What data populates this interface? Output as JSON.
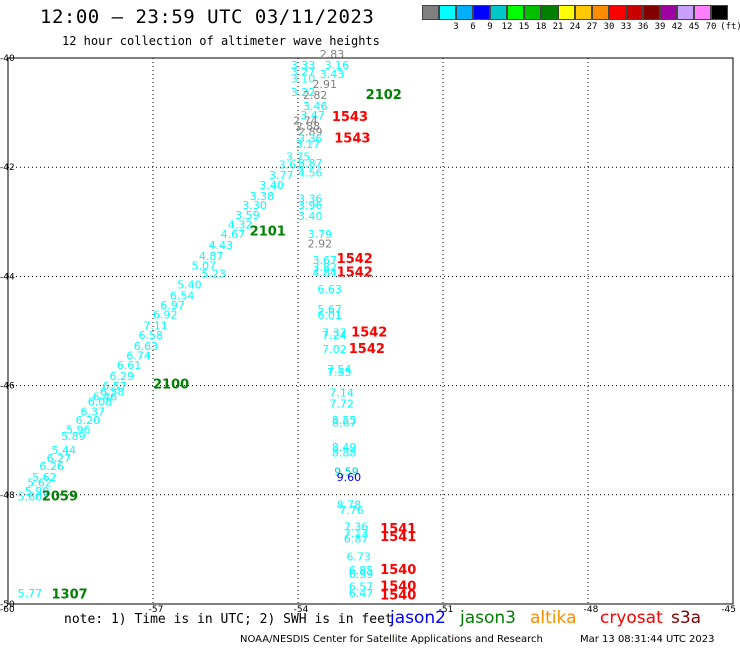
{
  "title": "12:00 — 23:59 UTC 03/11/2023",
  "subtitle": "12 hour collection of altimeter wave heights",
  "legend": {
    "unit": "(ft)",
    "colors": [
      "#808080",
      "#00ffff",
      "#00b0ff",
      "#0000ff",
      "#00c8c8",
      "#00ff00",
      "#00c000",
      "#008000",
      "#ffff00",
      "#ffc800",
      "#ff8c00",
      "#ff0000",
      "#c80000",
      "#800000",
      "#a000a0",
      "#c8a0ff",
      "#ff80ff",
      "#000000"
    ],
    "labels": [
      "3",
      "6",
      "9",
      "12",
      "15",
      "18",
      "21",
      "24",
      "27",
      "30",
      "33",
      "36",
      "39",
      "42",
      "45",
      "70"
    ]
  },
  "map": {
    "lon_ticks": [
      "-57",
      "-54",
      "-51",
      "-48",
      "-45"
    ],
    "lat_ticks": [
      "-40",
      "-42",
      "-44",
      "-46",
      "-48",
      "-50"
    ],
    "corner_label": "-60"
  },
  "points": [
    {
      "t": "2.83",
      "c": "#808080",
      "lon": -53.55,
      "lat": -40.0
    },
    {
      "t": "3.16",
      "c": "#00ffff",
      "lon": -53.45,
      "lat": -40.2
    },
    {
      "t": "3.43",
      "c": "#00ffff",
      "lon": -53.55,
      "lat": -40.37
    },
    {
      "t": "3.33",
      "c": "#00ffff",
      "lon": -54.15,
      "lat": -40.2
    },
    {
      "t": "3.27",
      "c": "#00ffff",
      "lon": -54.15,
      "lat": -40.32
    },
    {
      "t": "3.10",
      "c": "#00ffff",
      "lon": -54.15,
      "lat": -40.45
    },
    {
      "t": "2.91",
      "c": "#808080",
      "lon": -53.7,
      "lat": -40.55
    },
    {
      "t": "3.22",
      "c": "#00ffff",
      "lon": -54.15,
      "lat": -40.7
    },
    {
      "t": "2.82",
      "c": "#808080",
      "lon": -53.9,
      "lat": -40.75
    },
    {
      "t": "3.46",
      "c": "#00ffff",
      "lon": -53.9,
      "lat": -40.95
    },
    {
      "t": "3.47",
      "c": "#00ffff",
      "lon": -53.95,
      "lat": -41.12
    },
    {
      "t": "2.74",
      "c": "#808080",
      "lon": -54.1,
      "lat": -41.22
    },
    {
      "t": "2.88",
      "c": "#808080",
      "lon": -54.05,
      "lat": -41.32
    },
    {
      "t": "2.89",
      "c": "#808080",
      "lon": -54.0,
      "lat": -41.42
    },
    {
      "t": "3.36",
      "c": "#00ffff",
      "lon": -54.0,
      "lat": -41.55
    },
    {
      "t": "3.17",
      "c": "#00ffff",
      "lon": -54.05,
      "lat": -41.65
    },
    {
      "t": "3.75",
      "c": "#00ffff",
      "lon": -54.25,
      "lat": -41.88
    },
    {
      "t": "3.61",
      "c": "#00ffff",
      "lon": -54.4,
      "lat": -42.02
    },
    {
      "t": "3.87",
      "c": "#00ffff",
      "lon": -54.0,
      "lat": -42.0
    },
    {
      "t": "4.56",
      "c": "#00ffff",
      "lon": -54.0,
      "lat": -42.17
    },
    {
      "t": "3.77",
      "c": "#00ffff",
      "lon": -54.6,
      "lat": -42.22
    },
    {
      "t": "3.40",
      "c": "#00ffff",
      "lon": -54.8,
      "lat": -42.4
    },
    {
      "t": "3.38",
      "c": "#00ffff",
      "lon": -55.0,
      "lat": -42.6
    },
    {
      "t": "3.36",
      "c": "#00ffff",
      "lon": -54.0,
      "lat": -42.65
    },
    {
      "t": "3.30",
      "c": "#00ffff",
      "lon": -55.15,
      "lat": -42.77
    },
    {
      "t": "3.96",
      "c": "#00ffff",
      "lon": -54.0,
      "lat": -42.77
    },
    {
      "t": "3.59",
      "c": "#00ffff",
      "lon": -55.3,
      "lat": -42.95
    },
    {
      "t": "3.40",
      "c": "#00ffff",
      "lon": -54.0,
      "lat": -42.97
    },
    {
      "t": "4.32",
      "c": "#00ffff",
      "lon": -55.45,
      "lat": -43.12
    },
    {
      "t": "4.67",
      "c": "#00ffff",
      "lon": -55.6,
      "lat": -43.3
    },
    {
      "t": "3.79",
      "c": "#00ffff",
      "lon": -53.8,
      "lat": -43.3
    },
    {
      "t": "4.43",
      "c": "#00ffff",
      "lon": -55.85,
      "lat": -43.5
    },
    {
      "t": "2.92",
      "c": "#808080",
      "lon": -53.8,
      "lat": -43.47
    },
    {
      "t": "4.87",
      "c": "#00ffff",
      "lon": -56.05,
      "lat": -43.7
    },
    {
      "t": "3.67",
      "c": "#00ffff",
      "lon": -53.7,
      "lat": -43.77
    },
    {
      "t": "3.82",
      "c": "#00ffff",
      "lon": -53.7,
      "lat": -43.9
    },
    {
      "t": "5.07",
      "c": "#00ffff",
      "lon": -56.2,
      "lat": -43.87
    },
    {
      "t": "4.84",
      "c": "#00ffff",
      "lon": -53.7,
      "lat": -44.0
    },
    {
      "t": "5.23",
      "c": "#00ffff",
      "lon": -56.0,
      "lat": -44.02
    },
    {
      "t": "5.40",
      "c": "#00ffff",
      "lon": -56.5,
      "lat": -44.22
    },
    {
      "t": "6.63",
      "c": "#00ffff",
      "lon": -53.6,
      "lat": -44.3
    },
    {
      "t": "6.54",
      "c": "#00ffff",
      "lon": -56.65,
      "lat": -44.42
    },
    {
      "t": "6.97",
      "c": "#00ffff",
      "lon": -56.85,
      "lat": -44.6
    },
    {
      "t": "5.67",
      "c": "#00ffff",
      "lon": -53.6,
      "lat": -44.67
    },
    {
      "t": "6.92",
      "c": "#00ffff",
      "lon": -57.0,
      "lat": -44.77
    },
    {
      "t": "6.01",
      "c": "#00ffff",
      "lon": -53.6,
      "lat": -44.78
    },
    {
      "t": "7.11",
      "c": "#00ffff",
      "lon": -57.2,
      "lat": -44.97
    },
    {
      "t": "7.37",
      "c": "#00ffff",
      "lon": -53.5,
      "lat": -45.1
    },
    {
      "t": "7.24",
      "c": "#00ffff",
      "lon": -53.5,
      "lat": -45.15
    },
    {
      "t": "6.58",
      "c": "#00ffff",
      "lon": -57.3,
      "lat": -45.15
    },
    {
      "t": "6.63",
      "c": "#00ffff",
      "lon": -57.4,
      "lat": -45.35
    },
    {
      "t": "7.02",
      "c": "#00ffff",
      "lon": -53.5,
      "lat": -45.4
    },
    {
      "t": "6.74",
      "c": "#00ffff",
      "lon": -57.55,
      "lat": -45.52
    },
    {
      "t": "6.61",
      "c": "#00ffff",
      "lon": -57.75,
      "lat": -45.7
    },
    {
      "t": "7.54",
      "c": "#00ffff",
      "lon": -53.4,
      "lat": -45.77
    },
    {
      "t": "7.55",
      "c": "#00ffff",
      "lon": -53.4,
      "lat": -45.82
    },
    {
      "t": "6.29",
      "c": "#00ffff",
      "lon": -57.9,
      "lat": -45.9
    },
    {
      "t": "6.57",
      "c": "#00ffff",
      "lon": -58.05,
      "lat": -46.08
    },
    {
      "t": "6.58",
      "c": "#00ffff",
      "lon": -58.1,
      "lat": -46.18
    },
    {
      "t": "6.46",
      "c": "#00ffff",
      "lon": -58.25,
      "lat": -46.27
    },
    {
      "t": "7.14",
      "c": "#00ffff",
      "lon": -53.35,
      "lat": -46.2
    },
    {
      "t": "6.08",
      "c": "#00ffff",
      "lon": -58.35,
      "lat": -46.36
    },
    {
      "t": "7.72",
      "c": "#00ffff",
      "lon": -53.35,
      "lat": -46.4
    },
    {
      "t": "6.37",
      "c": "#00ffff",
      "lon": -58.5,
      "lat": -46.55
    },
    {
      "t": "6.20",
      "c": "#00ffff",
      "lon": -58.6,
      "lat": -46.7
    },
    {
      "t": "8.55",
      "c": "#00ffff",
      "lon": -53.3,
      "lat": -46.7
    },
    {
      "t": "8.67",
      "c": "#00ffff",
      "lon": -53.3,
      "lat": -46.75
    },
    {
      "t": "5.96",
      "c": "#00ffff",
      "lon": -58.8,
      "lat": -46.88
    },
    {
      "t": "5.89",
      "c": "#00ffff",
      "lon": -58.9,
      "lat": -47.0
    },
    {
      "t": "5.44",
      "c": "#00ffff",
      "lon": -59.1,
      "lat": -47.25
    },
    {
      "t": "8.49",
      "c": "#00ffff",
      "lon": -53.3,
      "lat": -47.2
    },
    {
      "t": "8.88",
      "c": "#00ffff",
      "lon": -53.3,
      "lat": -47.3
    },
    {
      "t": "6.27",
      "c": "#00ffff",
      "lon": -59.2,
      "lat": -47.4
    },
    {
      "t": "6.26",
      "c": "#00ffff",
      "lon": -59.35,
      "lat": -47.55
    },
    {
      "t": "9.59",
      "c": "#00c8c8",
      "lon": -53.25,
      "lat": -47.65
    },
    {
      "t": "9.60",
      "c": "#0000ff",
      "lon": -53.2,
      "lat": -47.75
    },
    {
      "t": "5.62",
      "c": "#00ffff",
      "lon": -59.5,
      "lat": -47.75
    },
    {
      "t": "5.62",
      "c": "#00ffff",
      "lon": -59.6,
      "lat": -47.85
    },
    {
      "t": "5.90",
      "c": "#00ffff",
      "lon": -59.65,
      "lat": -48.0
    },
    {
      "t": "5.60",
      "c": "#00ffff",
      "lon": -59.8,
      "lat": -48.1
    },
    {
      "t": "8.78",
      "c": "#00ffff",
      "lon": -53.2,
      "lat": -48.25
    },
    {
      "t": "7.76",
      "c": "#00ffff",
      "lon": -53.15,
      "lat": -48.35
    },
    {
      "t": "7.36",
      "c": "#00ffff",
      "lon": -53.05,
      "lat": -48.65
    },
    {
      "t": "7.13",
      "c": "#00ffff",
      "lon": -53.05,
      "lat": -48.77
    },
    {
      "t": "6.87",
      "c": "#00ffff",
      "lon": -53.05,
      "lat": -48.87
    },
    {
      "t": "6.73",
      "c": "#00ffff",
      "lon": -53.0,
      "lat": -49.2
    },
    {
      "t": "6.85",
      "c": "#00ffff",
      "lon": -52.95,
      "lat": -49.45
    },
    {
      "t": "6.99",
      "c": "#00ffff",
      "lon": -52.95,
      "lat": -49.52
    },
    {
      "t": "6.57",
      "c": "#00ffff",
      "lon": -52.95,
      "lat": -49.75
    },
    {
      "t": "6.47",
      "c": "#00ffff",
      "lon": -52.95,
      "lat": -49.87
    },
    {
      "t": "5.77",
      "c": "#00ffff",
      "lon": -59.8,
      "lat": -49.87
    }
  ],
  "times": [
    {
      "t": "2102",
      "c": "#008000",
      "lon": -52.6,
      "lat": -40.75
    },
    {
      "t": "1543",
      "c": "#ff0000",
      "lon": -53.3,
      "lat": -41.15
    },
    {
      "t": "1543",
      "c": "#ff0000",
      "lon": -53.25,
      "lat": -41.55
    },
    {
      "t": "2101",
      "c": "#008000",
      "lon": -55.0,
      "lat": -43.25
    },
    {
      "t": "1542",
      "c": "#ff0000",
      "lon": -53.2,
      "lat": -43.75
    },
    {
      "t": "1542",
      "c": "#ff0000",
      "lon": -53.2,
      "lat": -44.0
    },
    {
      "t": "1542",
      "c": "#ff0000",
      "lon": -52.9,
      "lat": -45.1
    },
    {
      "t": "1542",
      "c": "#ff0000",
      "lon": -52.95,
      "lat": -45.4
    },
    {
      "t": "2100",
      "c": "#008000",
      "lon": -57.0,
      "lat": -46.05
    },
    {
      "t": "2059",
      "c": "#008000",
      "lon": -59.3,
      "lat": -48.1
    },
    {
      "t": "1541",
      "c": "#ff0000",
      "lon": -52.3,
      "lat": -48.7
    },
    {
      "t": "1541",
      "c": "#ff0000",
      "lon": -52.3,
      "lat": -48.85
    },
    {
      "t": "1540",
      "c": "#ff0000",
      "lon": -52.3,
      "lat": -49.45
    },
    {
      "t": "1540",
      "c": "#ff0000",
      "lon": -52.3,
      "lat": -49.75
    },
    {
      "t": "1540",
      "c": "#ff0000",
      "lon": -52.3,
      "lat": -49.92
    },
    {
      "t": "1307",
      "c": "#008000",
      "lon": -59.1,
      "lat": -49.9
    }
  ],
  "footer": {
    "note": "note: 1) Time is in UTC; 2) SWH is in feet",
    "credit": "NOAA/NESDIS Center for Satellite Applications and Research",
    "date": "Mar 13 08:31:44 UTC 2023",
    "satellites": [
      {
        "name": "jason2",
        "color": "#0000ff"
      },
      {
        "name": "jason3",
        "color": "#008000"
      },
      {
        "name": "altika",
        "color": "#ff8c00"
      },
      {
        "name": "cryosat",
        "color": "#ff0000"
      },
      {
        "name": "s3a",
        "color": "#800000"
      }
    ]
  }
}
